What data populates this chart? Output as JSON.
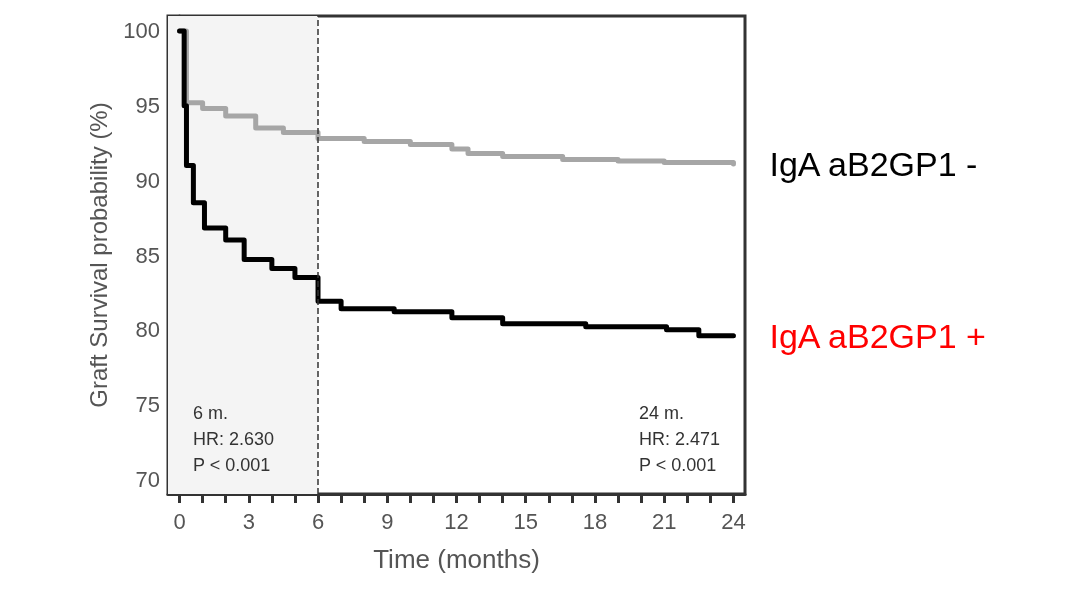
{
  "chart_data": {
    "type": "step",
    "xlabel": "Time (months)",
    "ylabel": "Graft Survival probability (%)",
    "xlim": [
      -0.5,
      24.5
    ],
    "ylim": [
      69,
      101
    ],
    "xticks": [
      0,
      {
        "value": 1,
        "label": null
      },
      {
        "value": 2,
        "label": null
      },
      3,
      {
        "value": 4,
        "label": null
      },
      {
        "value": 5,
        "label": null
      },
      6,
      {
        "value": 7,
        "label": null
      },
      {
        "value": 8,
        "label": null
      },
      9,
      {
        "value": 10,
        "label": null
      },
      {
        "value": 11,
        "label": null
      },
      12,
      {
        "value": 13,
        "label": null
      },
      {
        "value": 14,
        "label": null
      },
      15,
      {
        "value": 16,
        "label": null
      },
      {
        "value": 17,
        "label": null
      },
      18,
      {
        "value": 19,
        "label": null
      },
      {
        "value": 20,
        "label": null
      },
      21,
      {
        "value": 22,
        "label": null
      },
      {
        "value": 23,
        "label": null
      },
      24
    ],
    "yticks": [
      70,
      75,
      80,
      85,
      90,
      95,
      100
    ],
    "series": [
      {
        "name": "IgA aB2GP1 -",
        "color": "#a6a6a6",
        "x": [
          0,
          0.3,
          1,
          2,
          3.3,
          4.5,
          6,
          8,
          10,
          11.8,
          12.5,
          14,
          16.6,
          19,
          21,
          24
        ],
        "values": [
          100,
          95.2,
          94.8,
          94.3,
          93.5,
          93.2,
          92.8,
          92.6,
          92.4,
          92.1,
          91.8,
          91.6,
          91.4,
          91.3,
          91.2,
          91.1
        ]
      },
      {
        "name": "IgA aB2GP1 +",
        "color": "#000000",
        "x": [
          0,
          0.2,
          0.3,
          0.6,
          1.08,
          2,
          2.8,
          4,
          5,
          5.3,
          6,
          7,
          9.3,
          11.8,
          14,
          17.6,
          21.1,
          22.5,
          24
        ],
        "values": [
          100,
          95,
          91,
          88.5,
          86.8,
          86,
          84.7,
          84.1,
          83.5,
          83.5,
          81.9,
          81.4,
          81.2,
          80.8,
          80.4,
          80.2,
          80,
          79.6,
          79.6
        ]
      }
    ],
    "bands": [
      {
        "axis": "x",
        "from": -0.5,
        "to": 6,
        "color": "#f4f4f4"
      }
    ],
    "ref_lines": [
      {
        "axis": "x",
        "value": 6,
        "color": "#333333",
        "line_style": "dashed"
      }
    ],
    "annotations": [
      "6 m.\nHR: 2.630\nP < 0.001",
      "24 m.\nHR: 2.471\nP < 0.001"
    ],
    "legend": "right",
    "grid": false,
    "marker": "none",
    "line_style": "solid"
  }
}
